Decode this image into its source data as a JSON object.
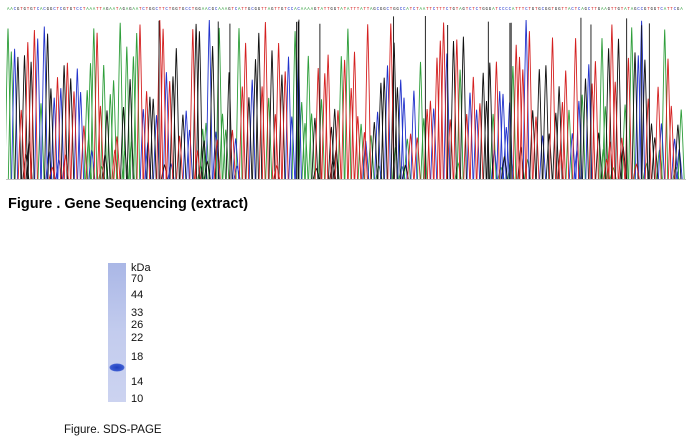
{
  "sequencing": {
    "title": "Figure . Gene Sequencing (extract)",
    "trace_colors": {
      "A": "#2e9e3a",
      "C": "#2233cc",
      "G": "#111111",
      "T": "#d42020"
    }
  },
  "sds_page": {
    "unit_label": "kDa",
    "markers": [
      "70",
      "44",
      "33",
      "26",
      "22",
      "18",
      "14",
      "10"
    ],
    "band_color": "#2a4fc9",
    "lane_color": "#b9c4ea",
    "caption": "Figure. SDS-PAGE"
  }
}
